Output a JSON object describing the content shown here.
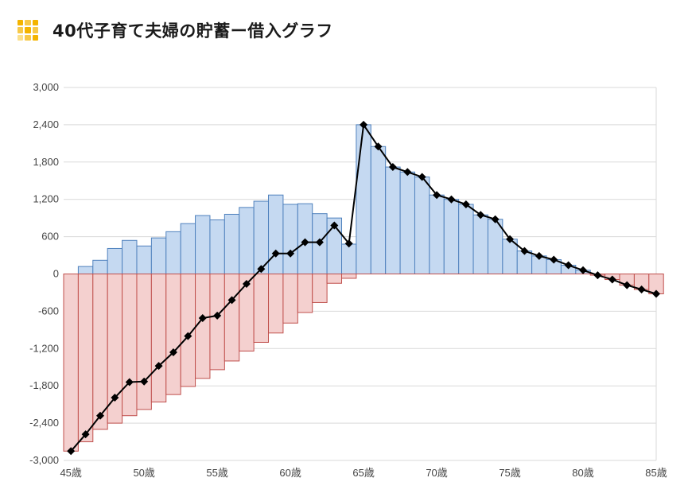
{
  "header": {
    "title": "40代子育て夫婦の貯蓄ー借入グラフ",
    "icon": "grid-icon",
    "icon_colors": [
      "#f4b400",
      "#f7c948",
      "#fbe08a"
    ]
  },
  "chart_data": {
    "type": "bar",
    "title": "",
    "xlabel": "",
    "ylabel": "",
    "ylim": [
      -3000,
      3000
    ],
    "yticks": [
      3000,
      2400,
      1800,
      1200,
      600,
      0,
      -600,
      -1200,
      -1800,
      -2400,
      -3000
    ],
    "ytick_labels": [
      "3,000",
      "2,400",
      "1,800",
      "1,200",
      "600",
      "0",
      "-600",
      "-1,200",
      "-1,800",
      "-2,400",
      "-3,000"
    ],
    "xtick_labels": [
      {
        "index": 0,
        "label": "45歳"
      },
      {
        "index": 5,
        "label": "50歳"
      },
      {
        "index": 10,
        "label": "55歳"
      },
      {
        "index": 15,
        "label": "60歳"
      },
      {
        "index": 20,
        "label": "65歳"
      },
      {
        "index": 25,
        "label": "70歳"
      },
      {
        "index": 30,
        "label": "75歳"
      },
      {
        "index": 35,
        "label": "80歳"
      },
      {
        "index": 40,
        "label": "85歳"
      }
    ],
    "grid": true,
    "colors": {
      "savings_fill": "#c5d9f1",
      "savings_edge": "#4f81bd",
      "debt_fill": "#f4d0cf",
      "debt_edge": "#c0504d",
      "net_line": "#000000",
      "grid": "#d9d9d9"
    },
    "categories": [
      "45",
      "46",
      "47",
      "48",
      "49",
      "50",
      "51",
      "52",
      "53",
      "54",
      "55",
      "56",
      "57",
      "58",
      "59",
      "60",
      "61",
      "62",
      "63",
      "64",
      "65",
      "66",
      "67",
      "68",
      "69",
      "70",
      "71",
      "72",
      "73",
      "74",
      "75",
      "76",
      "77",
      "78",
      "79",
      "80",
      "81",
      "82",
      "83",
      "84",
      "85"
    ],
    "series": [
      {
        "type": "bar",
        "values": [
          0,
          120,
          220,
          410,
          540,
          450,
          580,
          680,
          810,
          940,
          870,
          960,
          1070,
          1170,
          1270,
          1120,
          1130,
          970,
          900,
          480,
          2400,
          2050,
          1720,
          1640,
          1560,
          1270,
          1200,
          1120,
          950,
          880,
          560,
          370,
          290,
          230,
          140,
          60,
          0,
          0,
          0,
          0,
          0
        ]
      },
      {
        "type": "bar",
        "values": [
          -2850,
          -2700,
          -2500,
          -2400,
          -2280,
          -2180,
          -2060,
          -1940,
          -1810,
          -1680,
          -1540,
          -1400,
          -1240,
          -1100,
          -950,
          -790,
          -620,
          -460,
          -150,
          -70,
          0,
          0,
          0,
          0,
          0,
          0,
          0,
          0,
          0,
          0,
          0,
          0,
          0,
          0,
          0,
          0,
          -20,
          -90,
          -180,
          -250,
          -320
        ]
      },
      {
        "type": "line",
        "values": [
          -2850,
          -2580,
          -2280,
          -1990,
          -1740,
          -1730,
          -1480,
          -1260,
          -1000,
          -710,
          -670,
          -420,
          -160,
          80,
          330,
          330,
          510,
          510,
          780,
          490,
          2400,
          2050,
          1720,
          1640,
          1560,
          1270,
          1200,
          1120,
          950,
          880,
          560,
          370,
          290,
          230,
          140,
          60,
          -20,
          -90,
          -180,
          -250,
          -320
        ]
      }
    ]
  }
}
